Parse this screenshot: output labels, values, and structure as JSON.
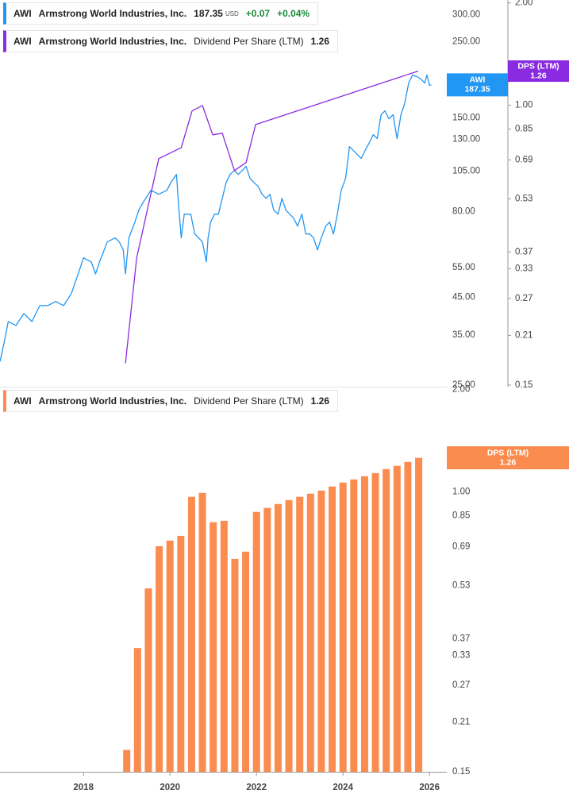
{
  "chart_data": [
    {
      "type": "line",
      "log_scale": true,
      "grid": false,
      "xlim": [
        2016.07,
        2026.4
      ],
      "ylim": [
        25,
        331
      ],
      "yticks": [
        {
          "value": 300,
          "label": "300.00"
        },
        {
          "value": 250,
          "label": "250.00"
        },
        {
          "value": 150,
          "label": "150.00"
        },
        {
          "value": 130,
          "label": "130.00"
        },
        {
          "value": 105,
          "label": "105.00"
        },
        {
          "value": 80,
          "label": "80.00"
        },
        {
          "value": 55,
          "label": "55.00"
        },
        {
          "value": 45,
          "label": "45.00"
        },
        {
          "value": 35,
          "label": "35.00"
        },
        {
          "value": 25,
          "label": "25.00"
        }
      ],
      "y2lim": [
        0.15,
        2.04
      ],
      "y2ticks": [
        {
          "value": 2,
          "label": "2.00"
        },
        {
          "value": 1,
          "label": "1.00"
        },
        0.85,
        0.69,
        0.53,
        0.37,
        0.33,
        0.27,
        0.21,
        0.15
      ],
      "series": [
        {
          "name": "Armstrong World Industries, Inc.",
          "ticker": "AWI",
          "color": "#2196f3",
          "currency": "USD",
          "change": "+0.07",
          "change_pct": "+0.04%",
          "change_color": "#1b8a3a",
          "x": [
            2016.07,
            2016.17,
            2016.26,
            2016.44,
            2016.62,
            2016.81,
            2016.99,
            2017.17,
            2017.36,
            2017.54,
            2017.72,
            2017.91,
            2018.0,
            2018.18,
            2018.28,
            2018.37,
            2018.55,
            2018.73,
            2018.83,
            2018.92,
            2018.97,
            2019.05,
            2019.19,
            2019.28,
            2019.38,
            2019.56,
            2019.74,
            2019.93,
            2020.02,
            2020.15,
            2020.2,
            2020.26,
            2020.33,
            2020.48,
            2020.57,
            2020.66,
            2020.75,
            2020.84,
            2020.88,
            2020.94,
            2021.03,
            2021.12,
            2021.21,
            2021.3,
            2021.39,
            2021.49,
            2021.58,
            2021.67,
            2021.76,
            2021.85,
            2021.94,
            2022.04,
            2022.13,
            2022.22,
            2022.31,
            2022.4,
            2022.5,
            2022.59,
            2022.68,
            2022.77,
            2022.86,
            2022.95,
            2023.05,
            2023.14,
            2023.23,
            2023.32,
            2023.41,
            2023.5,
            2023.6,
            2023.69,
            2023.78,
            2023.87,
            2023.96,
            2024.06,
            2024.15,
            2024.24,
            2024.33,
            2024.42,
            2024.51,
            2024.61,
            2024.7,
            2024.79,
            2024.88,
            2024.97,
            2025.06,
            2025.16,
            2025.25,
            2025.34,
            2025.43,
            2025.52,
            2025.61,
            2025.71,
            2025.8,
            2025.89,
            2025.94,
            2026.0,
            2026.04
          ],
          "values": [
            29.3,
            33.5,
            38.3,
            37.3,
            40.4,
            38.3,
            42.6,
            42.6,
            43.8,
            42.6,
            46.2,
            54.2,
            58.7,
            57.1,
            52.7,
            57.1,
            65.3,
            67.1,
            65.3,
            61.9,
            52.7,
            67.1,
            74.6,
            80.8,
            85.2,
            92.4,
            89.9,
            92.4,
            97.4,
            102.7,
            83.0,
            67.1,
            78.7,
            78.7,
            68.9,
            67.1,
            65.3,
            57.1,
            67.1,
            74.6,
            78.7,
            78.7,
            87.5,
            97.4,
            102.7,
            105.5,
            102.7,
            105.5,
            108.4,
            100.0,
            97.4,
            94.8,
            89.9,
            87.5,
            89.9,
            80.8,
            78.7,
            87.5,
            80.8,
            78.7,
            76.6,
            72.6,
            78.7,
            68.9,
            68.9,
            67.1,
            61.9,
            67.1,
            72.6,
            74.6,
            68.9,
            78.7,
            92.4,
            100.0,
            123.8,
            120.6,
            117.4,
            114.3,
            120.6,
            127.2,
            134.1,
            130.6,
            153.3,
            157.4,
            149.2,
            153.3,
            130.6,
            153.3,
            166.0,
            189.7,
            200.1,
            198.0,
            194.9,
            189.7,
            200.1,
            186.7,
            187.35
          ]
        },
        {
          "name": "Dividend Per Share (LTM)",
          "ticker": "AWI",
          "company": "Armstrong World Industries, Inc.",
          "tag": "DPS (LTM)",
          "color": "#8a2be2",
          "axis": "y2",
          "x": [
            2018.97,
            2019.23,
            2019.74,
            2020.26,
            2020.51,
            2020.75,
            2020.99,
            2021.21,
            2021.49,
            2021.76,
            2021.98,
            2025.74
          ],
          "values": [
            0.174,
            0.355,
            0.696,
            0.75,
            0.962,
            0.998,
            0.818,
            0.827,
            0.642,
            0.678,
            0.877,
            1.26
          ]
        }
      ]
    },
    {
      "type": "bar",
      "log_scale": true,
      "grid": false,
      "xlim": [
        2016.07,
        2026.4
      ],
      "xticks": [
        2018,
        2020,
        2022,
        2024,
        2026
      ],
      "ylim": [
        0.15,
        2.04
      ],
      "yticks": [
        {
          "value": 2,
          "label": "2.00"
        },
        {
          "value": 1,
          "label": "1.00"
        },
        0.85,
        0.69,
        0.53,
        0.37,
        0.33,
        0.27,
        0.21,
        0.15
      ],
      "series": [
        {
          "name": "Dividend Per Share (LTM)",
          "ticker": "AWI",
          "company": "Armstrong World Industries, Inc.",
          "tag": "DPS (LTM)",
          "color": "#fb8c50",
          "x": [
            2019,
            2019.25,
            2019.5,
            2019.75,
            2020,
            2020.25,
            2020.5,
            2020.75,
            2021,
            2021.25,
            2021.5,
            2021.75,
            2022,
            2022.25,
            2022.5,
            2022.75,
            2023,
            2023.25,
            2023.5,
            2023.75,
            2024,
            2024.25,
            2024.5,
            2024.75,
            2025,
            2025.25,
            2025.5,
            2025.75
          ],
          "values": [
            0.174,
            0.347,
            0.52,
            0.692,
            0.719,
            0.742,
            0.967,
            0.993,
            0.814,
            0.822,
            0.635,
            0.667,
            0.873,
            0.897,
            0.921,
            0.946,
            0.967,
            0.988,
            1.009,
            1.037,
            1.065,
            1.088,
            1.112,
            1.136,
            1.167,
            1.193,
            1.225,
            1.26
          ]
        }
      ]
    }
  ]
}
